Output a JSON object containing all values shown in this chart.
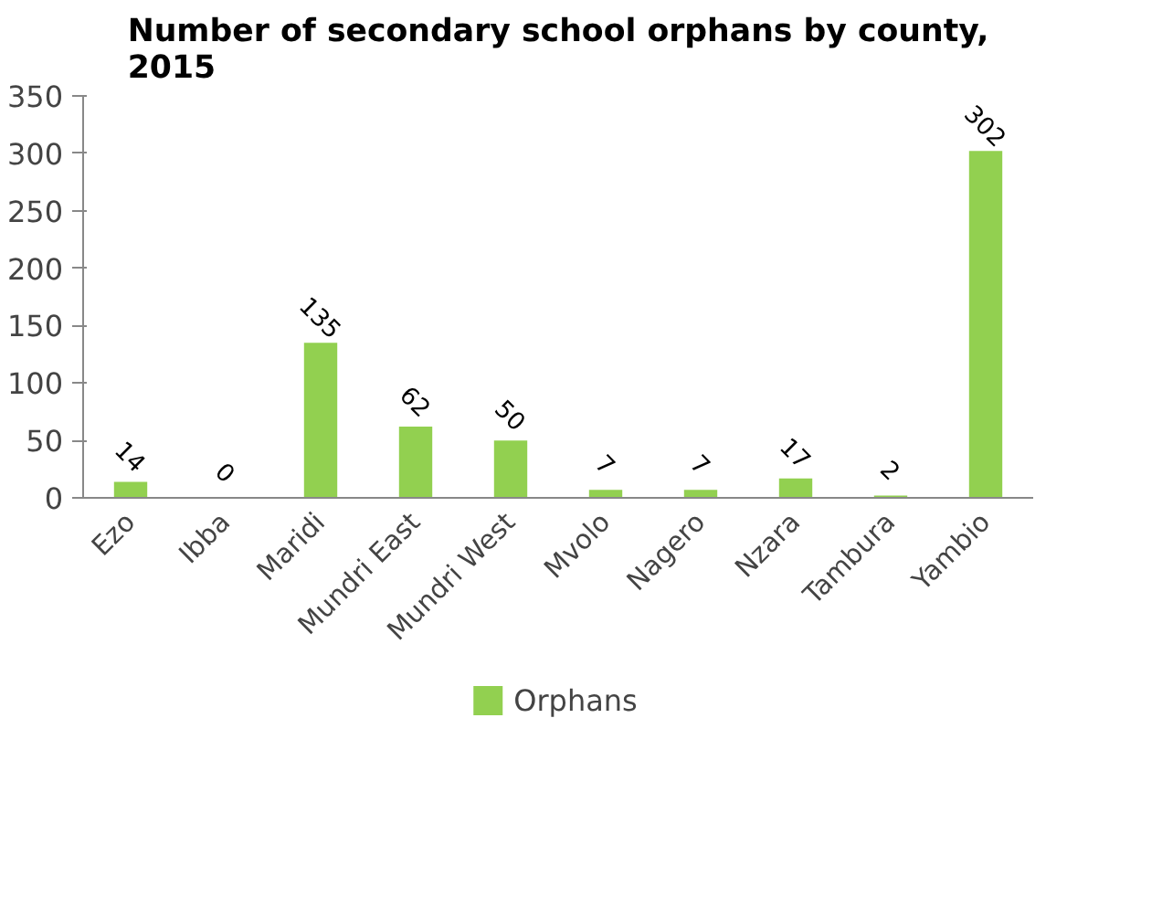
{
  "chart_data": {
    "type": "bar",
    "title": "Number of secondary school orphans by county, 2015",
    "categories": [
      "Ezo",
      "Ibba",
      "Maridi",
      "Mundri East",
      "Mundri West",
      "Mvolo",
      "Nagero",
      "Nzara",
      "Tambura",
      "Yambio"
    ],
    "series": [
      {
        "name": "Orphans",
        "color": "#92d050",
        "values": [
          14,
          0,
          135,
          62,
          50,
          7,
          7,
          17,
          2,
          302
        ]
      }
    ],
    "ylim": [
      0,
      350
    ],
    "yticks": [
      0,
      50,
      100,
      150,
      200,
      250,
      300,
      350
    ],
    "data_labels": true,
    "grid": false,
    "legend": "bottom"
  }
}
